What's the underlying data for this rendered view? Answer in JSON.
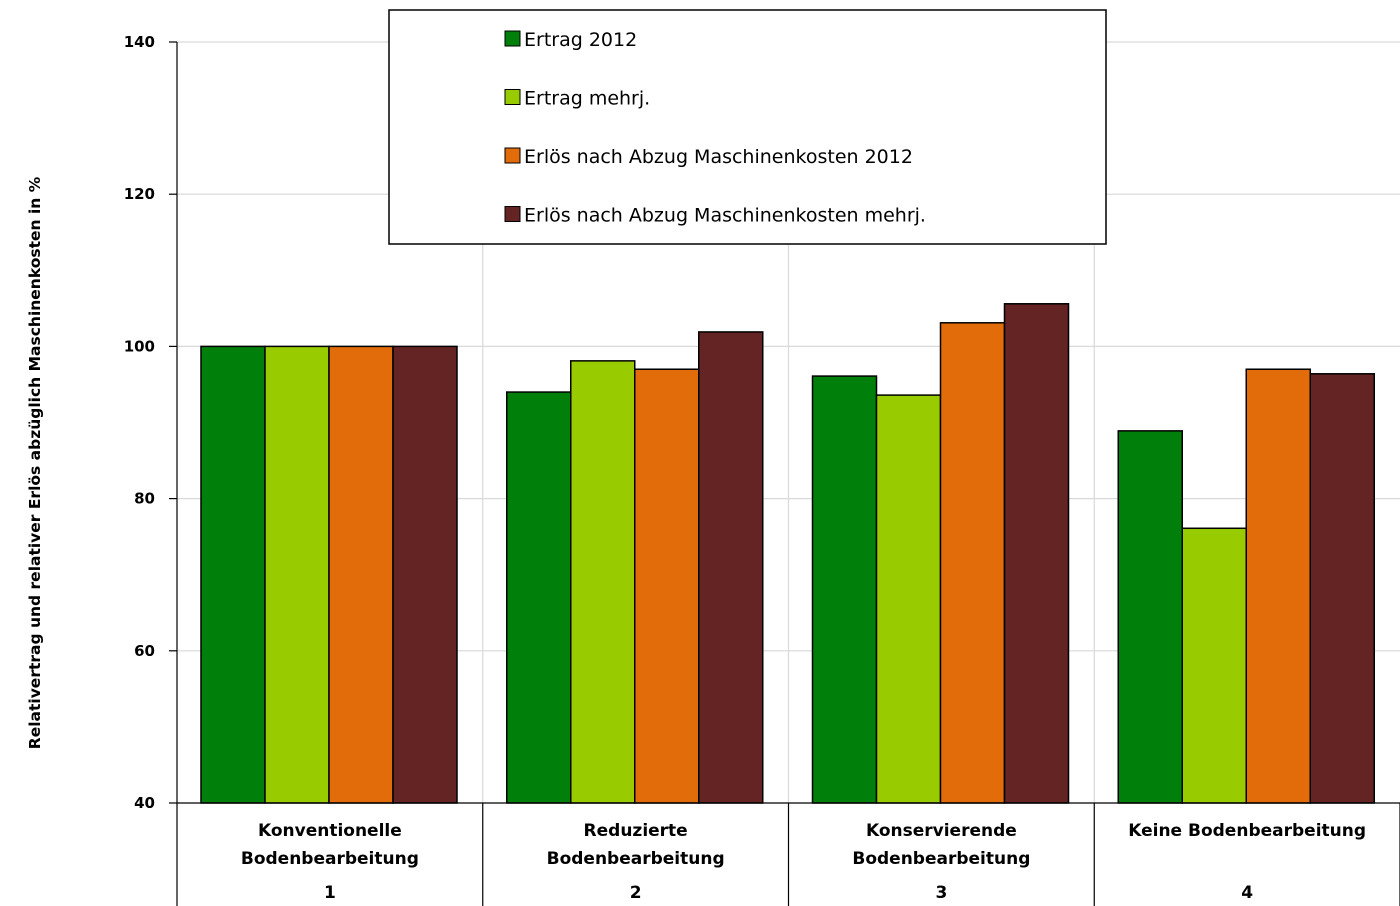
{
  "chart_data": {
    "type": "bar",
    "title": "",
    "xlabel": "",
    "ylabel": "Relativertrag und relativer Erlös abzüglich Maschinenkosten in %",
    "ylim": [
      40,
      140
    ],
    "yticks": [
      40,
      60,
      80,
      100,
      120,
      140
    ],
    "grid": true,
    "legend_position": "top-center",
    "categories": [
      {
        "lines": [
          "Konventionelle",
          "Bodenbearbeitung"
        ],
        "number": "1"
      },
      {
        "lines": [
          "Reduzierte",
          "Bodenbearbeitung"
        ],
        "number": "2"
      },
      {
        "lines": [
          "Konservierende",
          "Bodenbearbeitung"
        ],
        "number": "3"
      },
      {
        "lines": [
          "Keine Bodenbearbeitung"
        ],
        "number": "4"
      }
    ],
    "series": [
      {
        "name": "Ertrag  2012",
        "color": "#00800a",
        "values": [
          100,
          94,
          96.1,
          88.9
        ]
      },
      {
        "name": "Ertrag  mehrj.",
        "color": "#99cc00",
        "values": [
          100,
          98.1,
          93.6,
          76.1
        ]
      },
      {
        "name": "Erlös nach Abzug Maschinenkosten 2012",
        "color": "#e36c0a",
        "values": [
          100,
          97,
          103.1,
          97
        ]
      },
      {
        "name": "Erlös nach Abzug Maschinenkosten mehrj.",
        "color": "#632423",
        "values": [
          100,
          101.9,
          105.6,
          96.4
        ]
      }
    ]
  }
}
